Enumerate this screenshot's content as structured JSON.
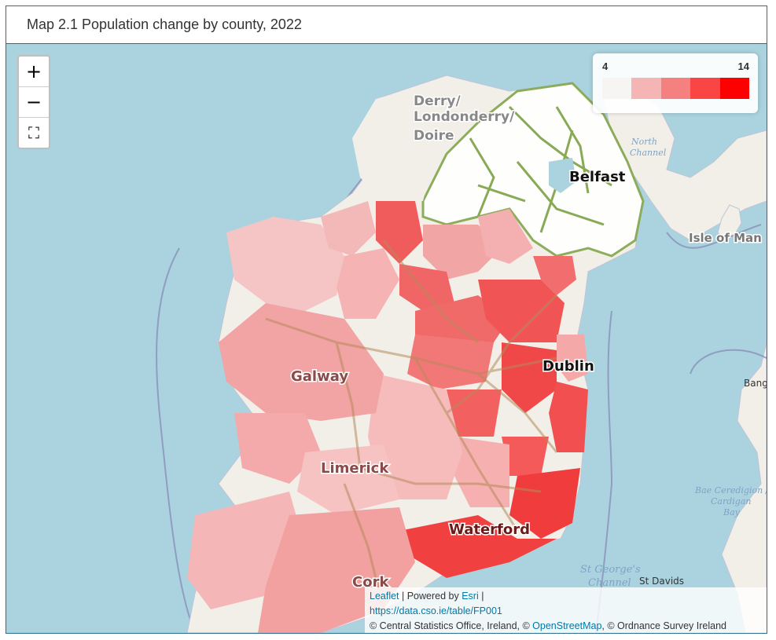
{
  "title": "Map 2.1 Population change by county, 2022",
  "zoom": {
    "in_label": "+",
    "out_label": "−",
    "fullscreen_label": "⛶"
  },
  "legend": {
    "min": "4",
    "max": "14",
    "colors": [
      "#f7f4f4",
      "#f5b5b5",
      "#f58080",
      "#fa4545",
      "#ff0000"
    ]
  },
  "labels": {
    "derry1": "Derry/",
    "derry2": "Londonderry/",
    "derry3": "Doire",
    "belfast": "Belfast",
    "isle_of_man": "Isle of Man",
    "north_channel1": "North",
    "north_channel2": "Channel",
    "galway": "Galway",
    "dublin": "Dublin",
    "limerick": "Limerick",
    "waterford": "Waterford",
    "cork": "Cork",
    "stgeorge1": "St George's",
    "stgeorge2": "Channel",
    "stdavids": "St Davids",
    "bangor": "Bang",
    "bae1": "Bae Ceredigion /",
    "bae2": "Cardigan",
    "bae3": "Bay"
  },
  "attribution": {
    "leaflet": "Leaflet",
    "sep1": " | Powered by ",
    "esri": "Esri",
    "sep2": " |",
    "source_url": "https://data.cso.ie/table/FP001",
    "copy1": "© Central Statistics Office, Ireland, © ",
    "osm": "OpenStreetMap",
    "copy2": ", © Ordnance Survey Ireland"
  }
}
